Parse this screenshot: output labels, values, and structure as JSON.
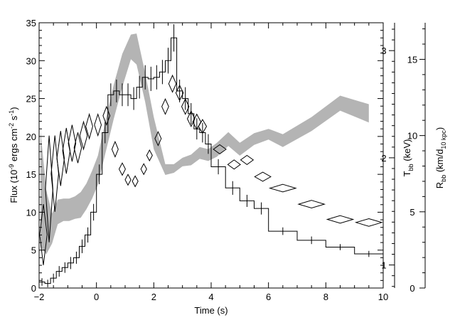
{
  "chart_data": {
    "type": "line",
    "x_axis": {
      "label": "Time (s)",
      "range": [
        -2,
        10
      ],
      "ticks": [
        -2,
        0,
        2,
        4,
        6,
        8,
        10
      ]
    },
    "y_axis_left": {
      "label": "Flux (10",
      "label_exp1": "-9",
      "label_mid": " ergs cm",
      "label_exp2": "-2",
      "label_mid2": " s",
      "label_exp3": "-1",
      "label_end": ")",
      "range": [
        0,
        35
      ],
      "ticks": [
        0,
        5,
        10,
        15,
        20,
        25,
        30,
        35
      ]
    },
    "y_axis_temp": {
      "label_main": "T",
      "label_sub": "bb",
      "label_end": " (keV)",
      "range": [
        0.785,
        3.26
      ],
      "ticks": [
        1,
        2,
        3
      ]
    },
    "y_axis_radius": {
      "label_main": "R",
      "label_sub1": "bb",
      "label_mid": " (km/d",
      "label_sub2": "10 kpc",
      "label_end": ")",
      "range": [
        0,
        17.4
      ],
      "ticks": [
        0,
        5,
        10,
        15
      ]
    },
    "series": [
      {
        "kind": "flux_histogram",
        "axis": "left",
        "color": "#000000",
        "edges": [
          -2.0,
          -1.8,
          -1.6,
          -1.4,
          -1.2,
          -1.0,
          -0.8,
          -0.6,
          -0.4,
          -0.2,
          0.0,
          0.2,
          0.4,
          0.6,
          0.8,
          1.0,
          1.2,
          1.4,
          1.6,
          1.8,
          2.0,
          2.2,
          2.4,
          2.6,
          2.8,
          3.0,
          3.2,
          3.4,
          3.6,
          3.8,
          4.0,
          4.5,
          5.0,
          5.5,
          6.0,
          7.0,
          8.0,
          9.0,
          10.0
        ],
        "values": [
          0.8,
          0.6,
          1.3,
          2.2,
          2.7,
          3.3,
          4.0,
          5.5,
          7.0,
          10.0,
          15.0,
          20.5,
          25.5,
          26.0,
          25.5,
          25.5,
          25.0,
          26.5,
          27.8,
          27.6,
          27.8,
          28.5,
          30.0,
          33.0,
          26.0,
          25.0,
          23.0,
          21.0,
          20.5,
          19.0,
          16.0,
          13.2,
          11.5,
          10.5,
          7.5,
          6.3,
          5.4,
          4.5
        ],
        "errors": [
          0.5,
          0.5,
          0.6,
          0.7,
          0.7,
          0.8,
          0.8,
          0.9,
          1.0,
          1.1,
          1.3,
          1.4,
          1.5,
          1.5,
          1.5,
          1.5,
          1.5,
          1.5,
          1.6,
          1.6,
          1.6,
          1.6,
          1.7,
          1.8,
          1.5,
          1.5,
          1.4,
          1.4,
          1.3,
          1.3,
          1.0,
          0.9,
          0.8,
          0.8,
          0.5,
          0.5,
          0.4,
          0.4
        ]
      },
      {
        "kind": "temperature_band",
        "axis": "temp",
        "color": "#b4b4b4",
        "x": [
          -1.95,
          -1.75,
          -1.55,
          -1.35,
          -1.15,
          -0.95,
          -0.75,
          -0.55,
          -0.35,
          -0.15,
          0.05,
          0.3,
          0.6,
          0.9,
          1.2,
          1.4,
          1.7,
          2.0,
          2.4,
          2.7,
          3.0,
          3.3,
          3.6,
          3.9,
          4.2,
          4.6,
          5.0,
          5.5,
          6.0,
          6.5,
          7.5,
          8.5,
          9.5
        ],
        "lower": [
          1.17,
          1.1,
          1.2,
          1.38,
          1.41,
          1.41,
          1.43,
          1.44,
          1.52,
          1.62,
          1.75,
          2.03,
          2.36,
          2.66,
          2.92,
          2.87,
          2.52,
          2.08,
          1.84,
          1.86,
          1.92,
          1.93,
          1.99,
          1.97,
          2.01,
          2.11,
          2.02,
          2.12,
          2.17,
          2.1,
          2.25,
          2.44,
          2.33
        ],
        "upper": [
          2.25,
          1.7,
          1.48,
          1.61,
          1.62,
          1.62,
          1.64,
          1.68,
          1.76,
          1.88,
          2.02,
          2.33,
          2.68,
          2.97,
          3.15,
          3.16,
          2.79,
          2.38,
          1.94,
          1.94,
          2.0,
          2.03,
          2.1,
          2.08,
          2.14,
          2.24,
          2.14,
          2.23,
          2.27,
          2.22,
          2.38,
          2.58,
          2.5
        ]
      },
      {
        "kind": "radius_diamonds",
        "axis": "radius",
        "color": "#000000",
        "points": [
          {
            "x": -1.85,
            "y": 3.5,
            "dx": 0.13,
            "dy": 2.0
          },
          {
            "x": -1.65,
            "y": 6.5,
            "dx": 0.13,
            "dy": 3.5
          },
          {
            "x": -1.45,
            "y": 7.5,
            "dx": 0.13,
            "dy": 2.5
          },
          {
            "x": -1.25,
            "y": 8.5,
            "dx": 0.13,
            "dy": 1.8
          },
          {
            "x": -1.05,
            "y": 9.0,
            "dx": 0.13,
            "dy": 1.5
          },
          {
            "x": -0.85,
            "y": 9.5,
            "dx": 0.13,
            "dy": 1.2
          },
          {
            "x": -0.65,
            "y": 9.2,
            "dx": 0.13,
            "dy": 1.0
          },
          {
            "x": -0.45,
            "y": 10.0,
            "dx": 0.13,
            "dy": 0.9
          },
          {
            "x": -0.25,
            "y": 10.6,
            "dx": 0.12,
            "dy": 0.8
          },
          {
            "x": 0.05,
            "y": 10.7,
            "dx": 0.12,
            "dy": 0.7
          },
          {
            "x": 0.35,
            "y": 11.3,
            "dx": 0.12,
            "dy": 0.6
          },
          {
            "x": 0.65,
            "y": 9.1,
            "dx": 0.11,
            "dy": 0.5
          },
          {
            "x": 0.9,
            "y": 7.8,
            "dx": 0.11,
            "dy": 0.4
          },
          {
            "x": 1.1,
            "y": 7.1,
            "dx": 0.1,
            "dy": 0.35
          },
          {
            "x": 1.35,
            "y": 7.0,
            "dx": 0.1,
            "dy": 0.35
          },
          {
            "x": 1.65,
            "y": 7.8,
            "dx": 0.1,
            "dy": 0.35
          },
          {
            "x": 1.85,
            "y": 8.7,
            "dx": 0.1,
            "dy": 0.35
          },
          {
            "x": 2.15,
            "y": 9.8,
            "dx": 0.11,
            "dy": 0.45
          },
          {
            "x": 2.4,
            "y": 11.9,
            "dx": 0.12,
            "dy": 0.5
          },
          {
            "x": 2.65,
            "y": 13.4,
            "dx": 0.13,
            "dy": 0.55
          },
          {
            "x": 2.9,
            "y": 12.8,
            "dx": 0.13,
            "dy": 0.5
          },
          {
            "x": 3.1,
            "y": 11.9,
            "dx": 0.13,
            "dy": 0.5
          },
          {
            "x": 3.3,
            "y": 11.1,
            "dx": 0.13,
            "dy": 0.5
          },
          {
            "x": 3.5,
            "y": 10.9,
            "dx": 0.14,
            "dy": 0.5
          },
          {
            "x": 3.7,
            "y": 10.6,
            "dx": 0.14,
            "dy": 0.45
          },
          {
            "x": 4.3,
            "y": 9.1,
            "dx": 0.22,
            "dy": 0.3
          },
          {
            "x": 4.8,
            "y": 8.1,
            "dx": 0.22,
            "dy": 0.3
          },
          {
            "x": 5.25,
            "y": 8.4,
            "dx": 0.22,
            "dy": 0.3
          },
          {
            "x": 5.8,
            "y": 7.3,
            "dx": 0.28,
            "dy": 0.3
          },
          {
            "x": 6.5,
            "y": 6.55,
            "dx": 0.45,
            "dy": 0.25
          },
          {
            "x": 7.5,
            "y": 5.5,
            "dx": 0.45,
            "dy": 0.25
          },
          {
            "x": 8.5,
            "y": 4.5,
            "dx": 0.45,
            "dy": 0.25
          },
          {
            "x": 9.5,
            "y": 4.3,
            "dx": 0.45,
            "dy": 0.25
          }
        ]
      }
    ]
  }
}
